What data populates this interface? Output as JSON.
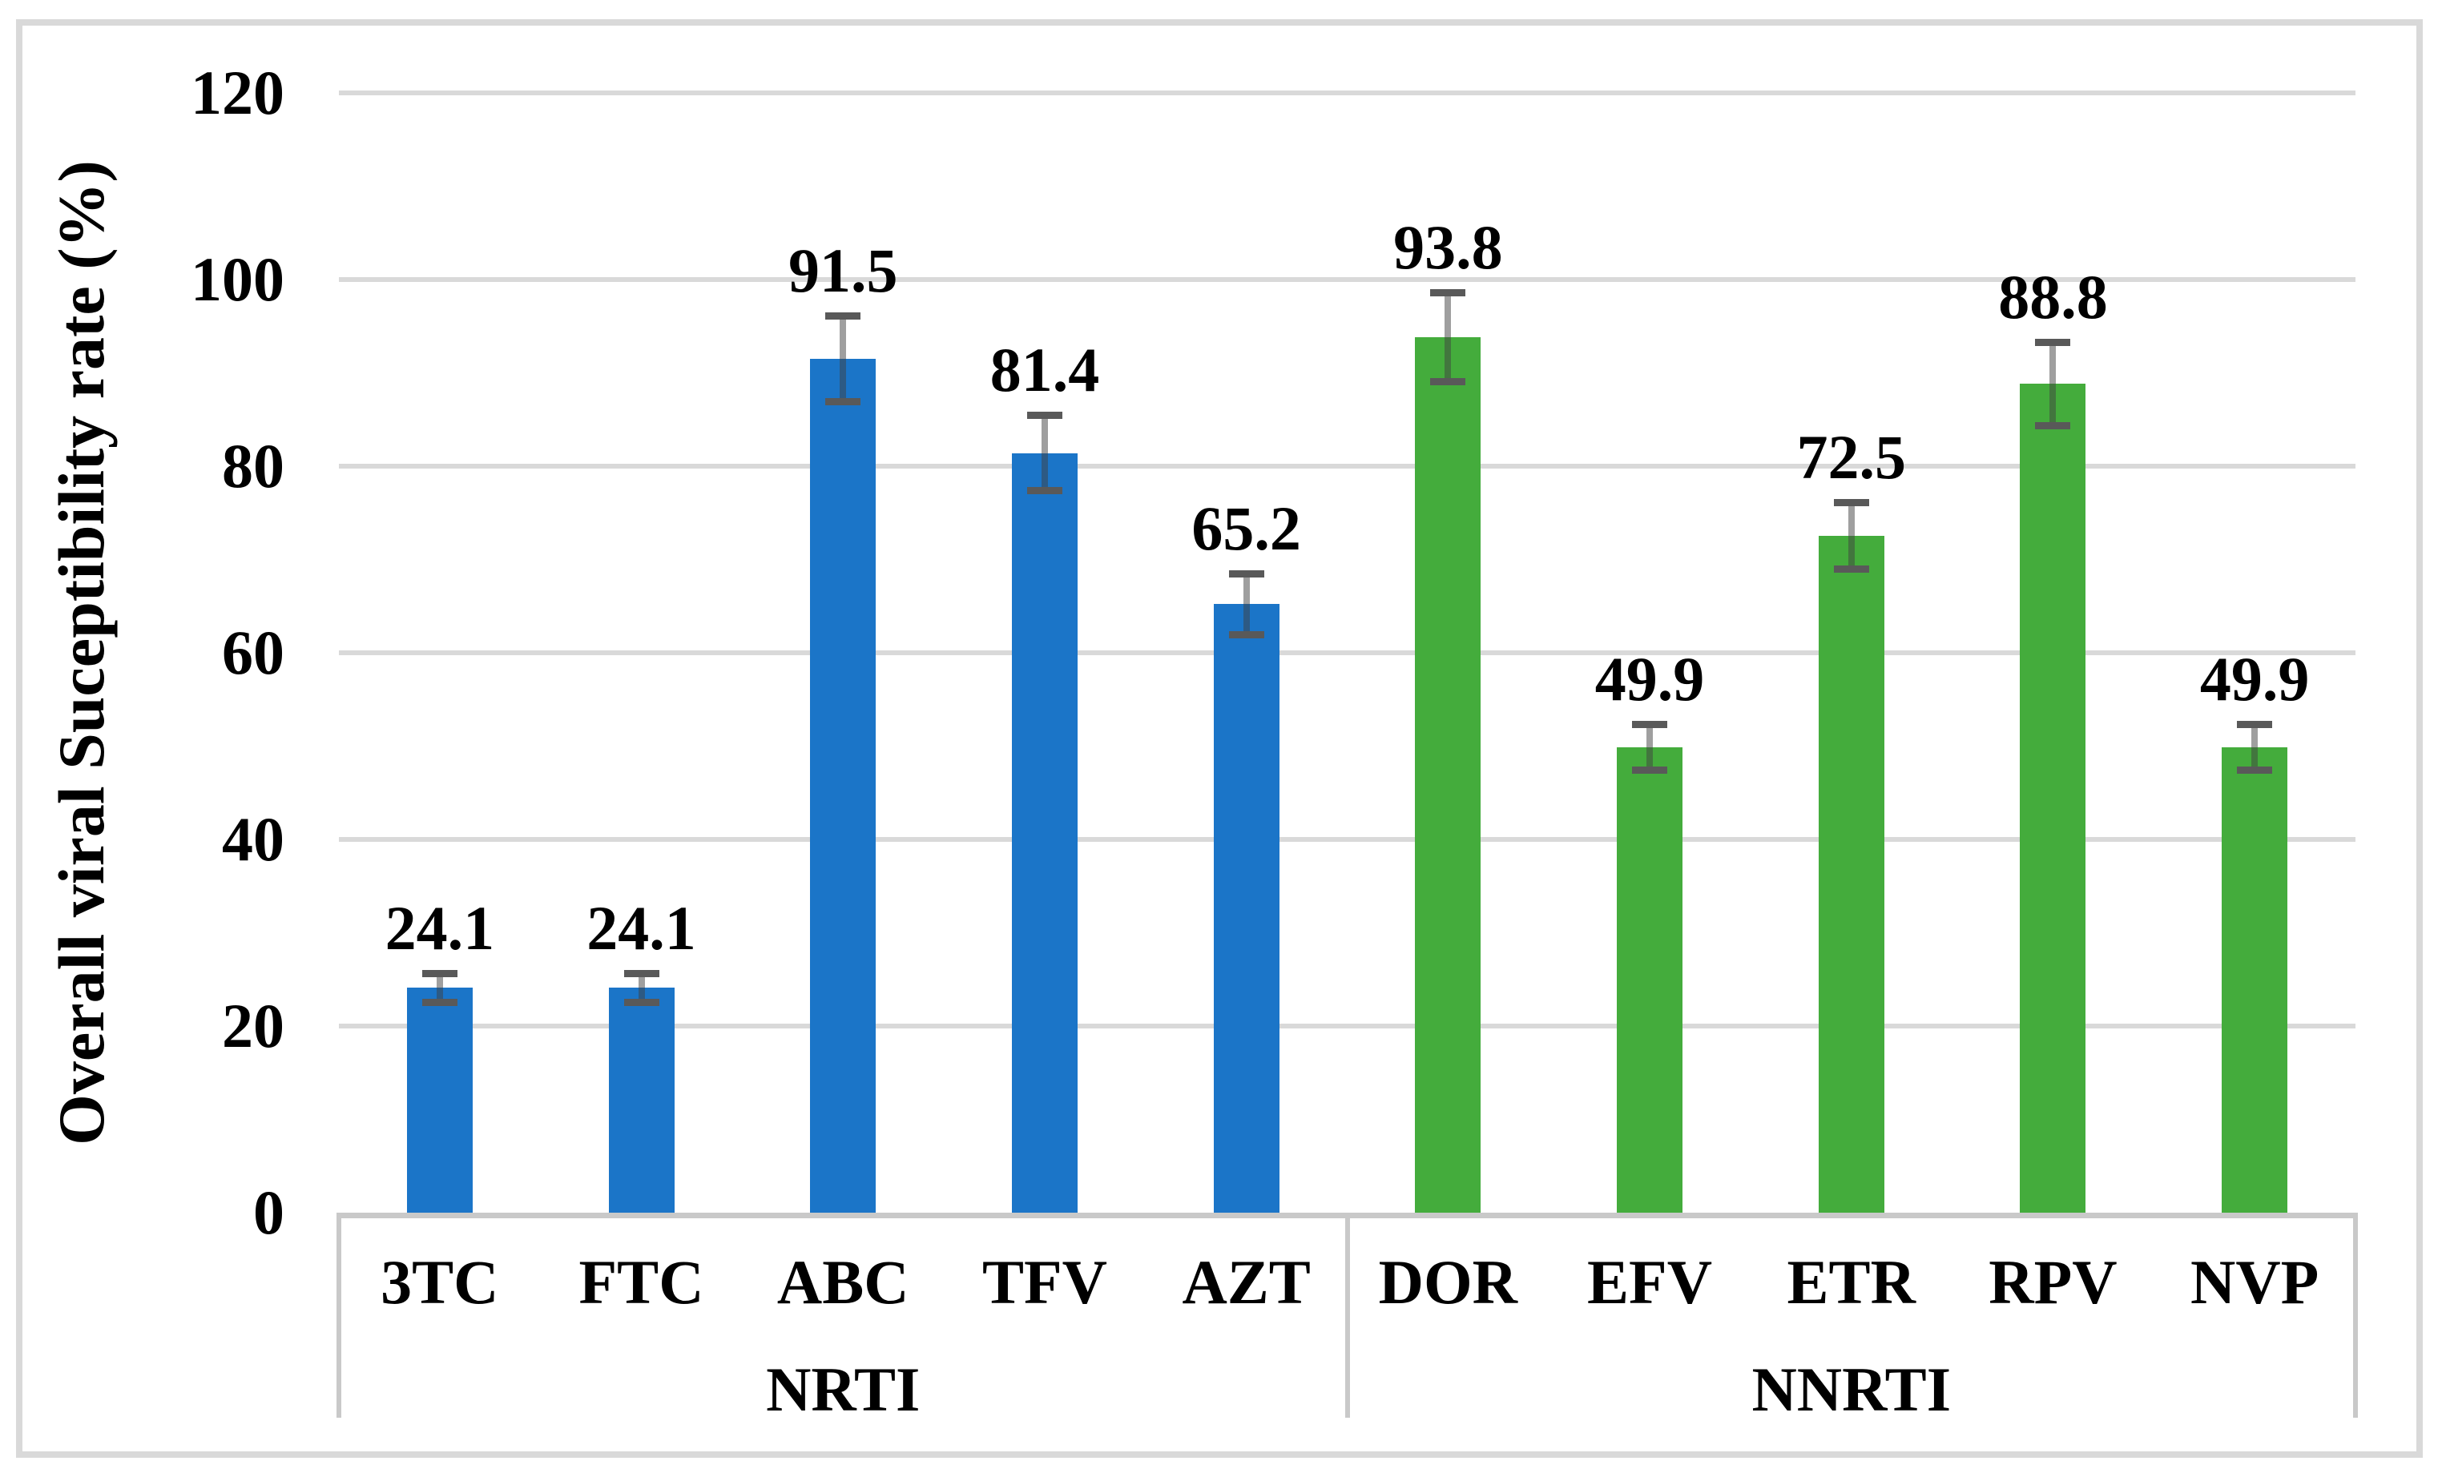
{
  "figure": {
    "background": "#ffffff",
    "border_color": "#d9d9d9"
  },
  "chart_data": {
    "type": "bar",
    "title": "",
    "xlabel": "",
    "ylabel": "Overall viral Suceptibility rate (%)",
    "ylim": [
      0,
      120
    ],
    "yticks": [
      0,
      20,
      40,
      60,
      80,
      100,
      120
    ],
    "grid": true,
    "legend_position": "none",
    "gridline_color": "#d9d9d9",
    "axis_line_color": "#c9c9c9",
    "error_bar_stem_color": "rgba(64,64,64,0.5)",
    "error_bar_cap_color": "#595959",
    "groups": [
      {
        "label": "NRTI",
        "bar_color": "#1b75c8",
        "bars": [
          {
            "label": "3TC",
            "value": 24.1,
            "value_label": "24.1",
            "error": 1.6
          },
          {
            "label": "FTC",
            "value": 24.1,
            "value_label": "24.1",
            "error": 1.6
          },
          {
            "label": "ABC",
            "value": 91.5,
            "value_label": "91.5",
            "error": 4.6
          },
          {
            "label": "TFV",
            "value": 81.4,
            "value_label": "81.4",
            "error": 4.1
          },
          {
            "label": "AZT",
            "value": 65.2,
            "value_label": "65.2",
            "error": 3.3
          }
        ]
      },
      {
        "label": "NNRTI",
        "bar_color": "#44ac3c",
        "bars": [
          {
            "label": "DOR",
            "value": 93.8,
            "value_label": "93.8",
            "error": 4.8
          },
          {
            "label": "EFV",
            "value": 49.9,
            "value_label": "49.9",
            "error": 2.5
          },
          {
            "label": "ETR",
            "value": 72.5,
            "value_label": "72.5",
            "error": 3.6
          },
          {
            "label": "RPV",
            "value": 88.8,
            "value_label": "88.8",
            "error": 4.5
          },
          {
            "label": "NVP",
            "value": 49.9,
            "value_label": "49.9",
            "error": 2.5
          }
        ]
      }
    ]
  }
}
